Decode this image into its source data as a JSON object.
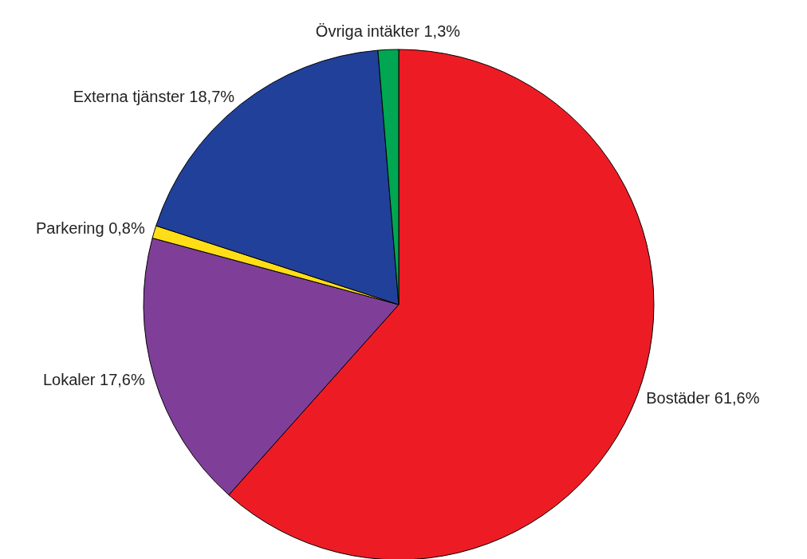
{
  "chart_data": {
    "type": "pie",
    "categories": [
      "Bostäder",
      "Lokaler",
      "Parkering",
      "Externa tjänster",
      "Övriga intäkter"
    ],
    "values": [
      61.6,
      17.6,
      0.8,
      18.7,
      1.3
    ],
    "value_labels": [
      "61,6%",
      "17,6%",
      "0,8%",
      "18,7%",
      "1,3%"
    ],
    "colors": [
      "#ed1c24",
      "#7f3f98",
      "#ffde17",
      "#21409a",
      "#00a651"
    ]
  }
}
